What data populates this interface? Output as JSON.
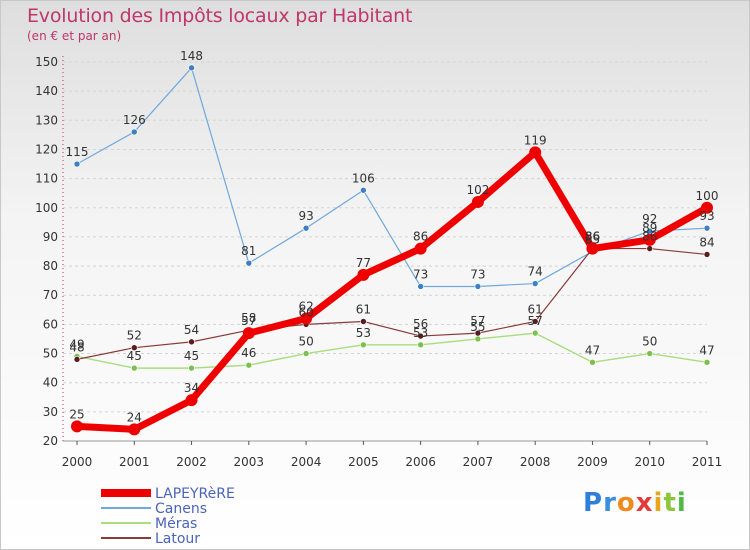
{
  "title": "Evolution des Impôts locaux par Habitant",
  "subtitle": "(en € et par an)",
  "brand": {
    "letters": [
      "P",
      "r",
      "o",
      "x",
      "i",
      "t",
      "i"
    ],
    "colors": [
      "#2f7fd9",
      "#3a8ee0",
      "#f08a1c",
      "#e23b3b",
      "#e9a51e",
      "#8cc63f",
      "#52b848"
    ]
  },
  "chart_data": {
    "type": "line",
    "title": "Evolution des Impôts locaux par Habitant",
    "subtitle": "(en € et par an)",
    "xlabel": "",
    "ylabel": "",
    "categories": [
      "2000",
      "2001",
      "2002",
      "2003",
      "2004",
      "2005",
      "2006",
      "2007",
      "2008",
      "2009",
      "2010",
      "2011"
    ],
    "ylim": [
      20,
      150
    ],
    "yticks": [
      "20",
      "30",
      "40",
      "50",
      "60",
      "70",
      "80",
      "90",
      "100",
      "110",
      "120",
      "130",
      "140",
      "150"
    ],
    "grid": "horizontal dashed",
    "legend_position": "bottom-left",
    "series": [
      {
        "name": "Canens",
        "color": "#6fa8dc",
        "marker": "#3d7fc2",
        "width": 1.2,
        "radius": 3,
        "values": [
          115,
          126,
          148,
          81,
          93,
          106,
          73,
          73,
          74,
          85,
          92,
          93
        ],
        "labels": [
          "115",
          "126",
          "148",
          "81",
          "93",
          "106",
          "73",
          "73",
          "74",
          "85",
          "92",
          "93"
        ]
      },
      {
        "name": "Méras",
        "color": "#a8dd80",
        "marker": "#7cc04e",
        "width": 1.4,
        "radius": 3,
        "values": [
          49,
          45,
          45,
          46,
          50,
          53,
          53,
          55,
          57,
          47,
          50,
          47
        ],
        "labels": [
          "49",
          "45",
          "45",
          "46",
          "50",
          "53",
          "53",
          "55",
          "57",
          "47",
          "50",
          "47"
        ]
      },
      {
        "name": "Latour",
        "color": "#8a3b3b",
        "marker": "#5a1c1c",
        "width": 1.2,
        "radius": 3,
        "values": [
          48,
          52,
          54,
          58,
          60,
          61,
          56,
          57,
          61,
          86,
          86,
          84
        ],
        "labels": [
          "48",
          "52",
          "54",
          "58",
          "60",
          "61",
          "56",
          "57",
          "61",
          "86",
          "86",
          "84"
        ]
      },
      {
        "name": "LAPEYRèRE",
        "color": "#ee0000",
        "marker": "#ee0000",
        "width": 7,
        "radius": 6,
        "values": [
          25,
          24,
          34,
          57,
          62,
          77,
          86,
          102,
          119,
          86,
          89,
          100
        ],
        "labels": [
          "25",
          "24",
          "34",
          "57",
          "62",
          "77",
          "86",
          "102",
          "119",
          "86",
          "89",
          "100"
        ]
      }
    ],
    "legend": [
      {
        "name": "LAPEYRèRE",
        "color": "#ee0000",
        "thickness": 8
      },
      {
        "name": "Canens",
        "color": "#6fa8dc",
        "thickness": 2
      },
      {
        "name": "Méras",
        "color": "#a8dd80",
        "thickness": 2
      },
      {
        "name": "Latour",
        "color": "#8a3b3b",
        "thickness": 2
      }
    ]
  }
}
